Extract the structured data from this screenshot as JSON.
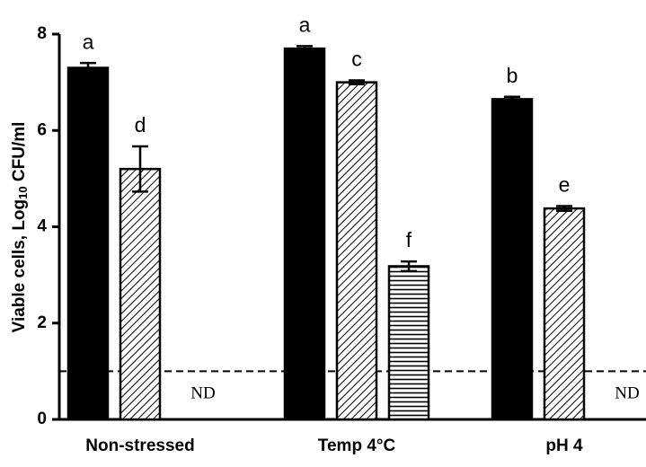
{
  "chart_data": {
    "type": "bar",
    "ylabel": [
      "Viable cells, Log",
      "10",
      " CFU/ml"
    ],
    "categories": [
      "Non-stressed",
      "Temp 4°C",
      "pH 4"
    ],
    "series": [
      {
        "pattern": "solid",
        "color": "#000000",
        "values": [
          7.3,
          7.7,
          6.65
        ],
        "errors": [
          0.1,
          0.05,
          0.05
        ],
        "letters": [
          "a",
          "a",
          "b"
        ]
      },
      {
        "pattern": "diagonal",
        "color": "#000000",
        "values": [
          5.2,
          7.0,
          4.38
        ],
        "errors": [
          0.47,
          0.04,
          0.05
        ],
        "letters": [
          "d",
          "c",
          "e"
        ]
      },
      {
        "pattern": "horizontal",
        "color": "#000000",
        "values": [
          null,
          3.18,
          null
        ],
        "errors": [
          null,
          0.1,
          null
        ],
        "letters": [
          null,
          "f",
          null
        ]
      }
    ],
    "nd_label": "ND",
    "threshold": 1,
    "ylim": [
      0,
      8
    ],
    "yticks": [
      0,
      2,
      4,
      6,
      8
    ]
  }
}
